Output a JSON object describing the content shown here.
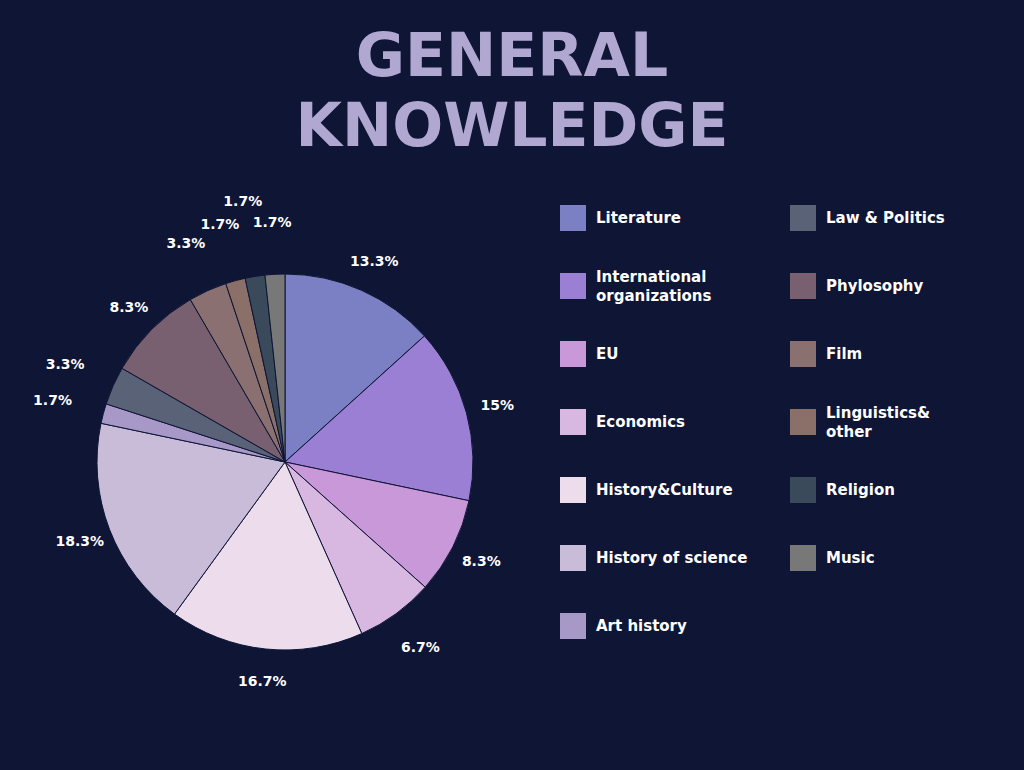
{
  "chart_data": {
    "type": "pie",
    "title": "GENERAL\nKNOWLEDGE",
    "categories": [
      "Literature",
      "International\norganizations",
      "EU",
      "Economics",
      "History&Culture",
      "History of science",
      "Art history",
      "Law & Politics",
      "Phylosophy",
      "Film",
      "Linguistics&\nother",
      "Religion",
      "Music"
    ],
    "values": [
      13.3,
      15.0,
      8.3,
      6.7,
      16.7,
      18.3,
      1.7,
      3.3,
      8.3,
      3.3,
      1.7,
      1.7,
      1.7
    ],
    "value_labels": [
      "13.3%",
      "15%",
      "8.3%",
      "6.7%",
      "16.7%",
      "18.3%",
      "1.7%",
      "3.3%",
      "8.3%",
      "3.3%",
      "1.7%",
      "1.7%",
      "1.7%"
    ],
    "colors": [
      "#7b7fc4",
      "#9b7fd4",
      "#c898d8",
      "#d8b8e0",
      "#ecdcec",
      "#c8bcd8",
      "#a898c8",
      "#5a6278",
      "#786070",
      "#8a7070",
      "#8a7068",
      "#3a4a5a",
      "#787878"
    ],
    "data_labels": true
  }
}
